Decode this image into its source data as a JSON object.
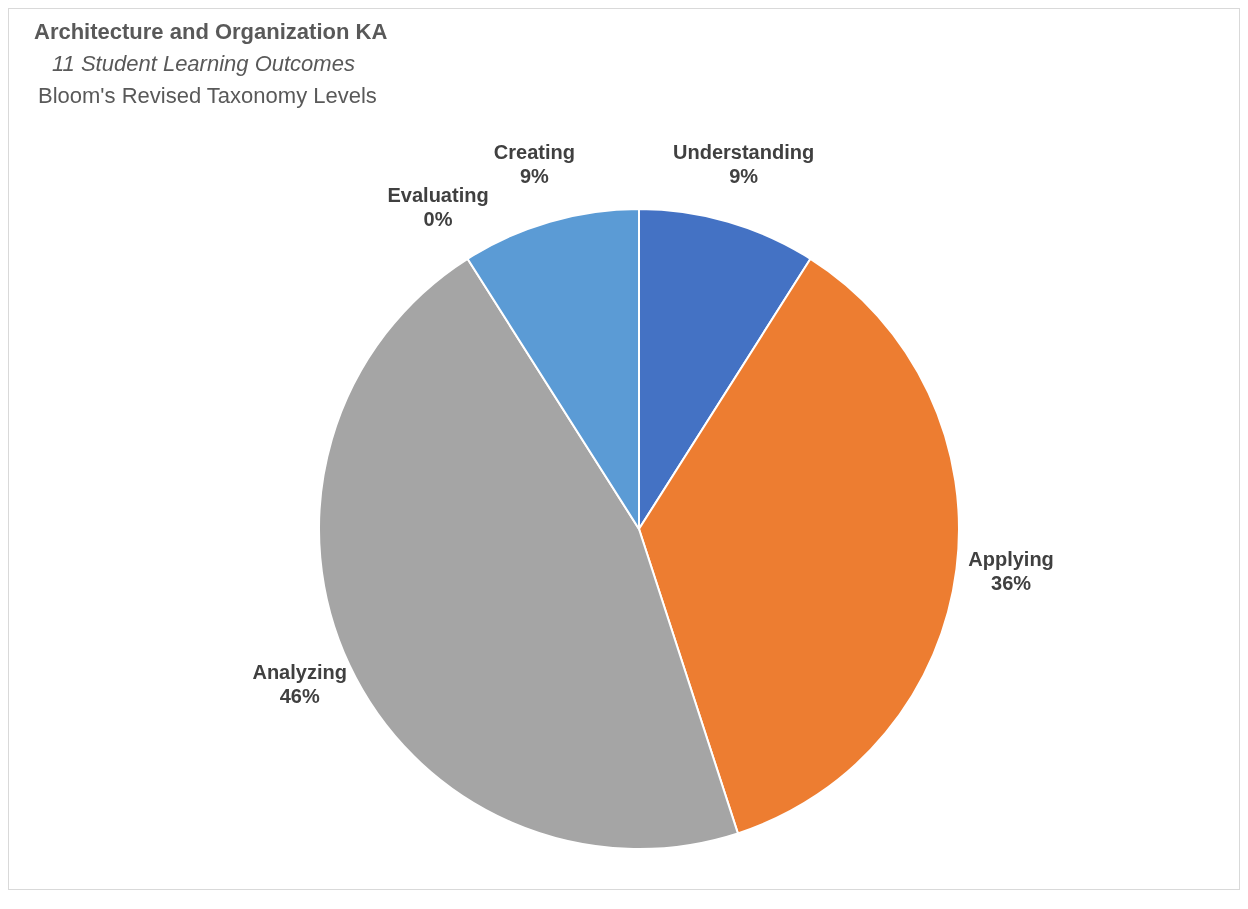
{
  "chart_data": {
    "type": "pie",
    "title": "Architecture and Organization KA",
    "subtitle": "11 Student Learning Outcomes",
    "annotations": [
      "Bloom's Revised Taxonomy Levels"
    ],
    "categories": [
      "Understanding",
      "Applying",
      "Analyzing",
      "Evaluating",
      "Creating"
    ],
    "values": [
      9,
      36,
      46,
      0,
      9
    ],
    "value_labels": [
      "9%",
      "36%",
      "46%",
      "0%",
      "9%"
    ],
    "colors": [
      "#4472c4",
      "#ed7d31",
      "#a5a5a5",
      "#ffc000",
      "#5b9bd5"
    ],
    "legend": false
  }
}
